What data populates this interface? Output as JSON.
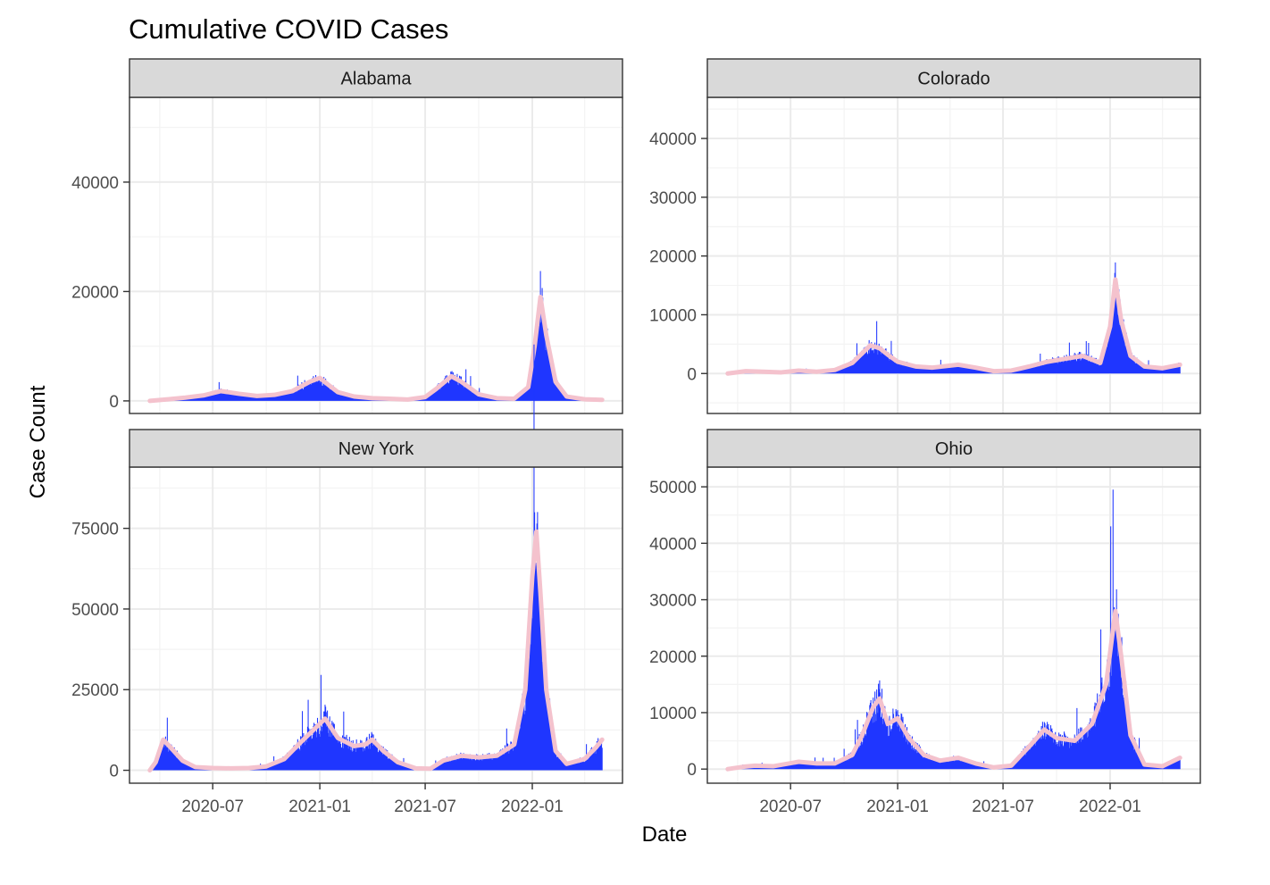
{
  "chart_data": {
    "type": "bar",
    "title": "Cumulative COVID Cases",
    "xlabel": "Date",
    "ylabel": "Case Count",
    "x_ticks": [
      "2020-07",
      "2021-01",
      "2021-07",
      "2022-01"
    ],
    "x_tick_dates": [
      "2020-07-01",
      "2021-01-01",
      "2021-07-01",
      "2022-01-01"
    ],
    "date_range": [
      "2020-03-15",
      "2022-05-01"
    ],
    "grid": true,
    "colors": {
      "bars": "#1f36ff",
      "smooth": "#f4c2cd",
      "strip": "#d9d9d9",
      "grid": "#ebebeb"
    },
    "series": [
      {
        "name": "daily cases",
        "style": "bars"
      },
      {
        "name": "rolling average",
        "style": "line"
      }
    ],
    "panels": [
      {
        "name": "Alabama",
        "ylim": [
          -2300,
          55500
        ],
        "y_ticks": [
          0,
          20000,
          40000
        ],
        "points": [
          [
            "2020-03-15",
            0
          ],
          [
            "2020-04-15",
            300
          ],
          [
            "2020-05-15",
            600
          ],
          [
            "2020-06-15",
            1000
          ],
          [
            "2020-07-15",
            1800
          ],
          [
            "2020-08-15",
            1300
          ],
          [
            "2020-09-15",
            900
          ],
          [
            "2020-10-15",
            1100
          ],
          [
            "2020-11-15",
            1800
          ],
          [
            "2020-12-15",
            3500
          ],
          [
            "2021-01-01",
            4200
          ],
          [
            "2021-01-15",
            3000
          ],
          [
            "2021-02-01",
            1600
          ],
          [
            "2021-03-01",
            800
          ],
          [
            "2021-04-01",
            500
          ],
          [
            "2021-05-01",
            400
          ],
          [
            "2021-06-01",
            250
          ],
          [
            "2021-07-01",
            700
          ],
          [
            "2021-07-20",
            2200
          ],
          [
            "2021-08-15",
            4500
          ],
          [
            "2021-09-01",
            3500
          ],
          [
            "2021-10-01",
            1200
          ],
          [
            "2021-11-01",
            500
          ],
          [
            "2021-12-01",
            400
          ],
          [
            "2021-12-25",
            2500
          ],
          [
            "2022-01-05",
            10000
          ],
          [
            "2022-01-15",
            19000
          ],
          [
            "2022-01-25",
            12000
          ],
          [
            "2022-02-10",
            3500
          ],
          [
            "2022-03-01",
            800
          ],
          [
            "2022-04-01",
            300
          ],
          [
            "2022-05-01",
            200
          ]
        ]
      },
      {
        "name": "Colorado",
        "ylim": [
          -6800,
          47000
        ],
        "y_ticks": [
          0,
          10000,
          20000,
          30000,
          40000
        ],
        "points": [
          [
            "2020-03-15",
            0
          ],
          [
            "2020-04-15",
            400
          ],
          [
            "2020-05-15",
            300
          ],
          [
            "2020-06-15",
            200
          ],
          [
            "2020-07-15",
            500
          ],
          [
            "2020-08-15",
            300
          ],
          [
            "2020-09-15",
            600
          ],
          [
            "2020-10-15",
            1800
          ],
          [
            "2020-11-15",
            4800
          ],
          [
            "2020-12-01",
            4300
          ],
          [
            "2020-12-15",
            3200
          ],
          [
            "2021-01-01",
            2000
          ],
          [
            "2021-02-01",
            1200
          ],
          [
            "2021-03-01",
            1000
          ],
          [
            "2021-04-15",
            1500
          ],
          [
            "2021-05-15",
            1000
          ],
          [
            "2021-06-15",
            400
          ],
          [
            "2021-07-15",
            500
          ],
          [
            "2021-08-15",
            1200
          ],
          [
            "2021-09-15",
            2000
          ],
          [
            "2021-10-15",
            2500
          ],
          [
            "2021-11-15",
            3000
          ],
          [
            "2021-12-15",
            1800
          ],
          [
            "2022-01-01",
            8000
          ],
          [
            "2022-01-10",
            16000
          ],
          [
            "2022-01-20",
            9000
          ],
          [
            "2022-02-05",
            3000
          ],
          [
            "2022-03-01",
            1200
          ],
          [
            "2022-04-01",
            900
          ],
          [
            "2022-05-01",
            1500
          ]
        ]
      },
      {
        "name": "New York",
        "ylim": [
          -4000,
          94000
        ],
        "y_ticks": [
          0,
          25000,
          50000,
          75000
        ],
        "points": [
          [
            "2020-03-15",
            0
          ],
          [
            "2020-03-25",
            2500
          ],
          [
            "2020-04-07",
            9500
          ],
          [
            "2020-04-20",
            7000
          ],
          [
            "2020-05-10",
            3000
          ],
          [
            "2020-06-01",
            1000
          ],
          [
            "2020-07-01",
            700
          ],
          [
            "2020-08-01",
            600
          ],
          [
            "2020-09-01",
            700
          ],
          [
            "2020-10-01",
            1200
          ],
          [
            "2020-11-01",
            3500
          ],
          [
            "2020-12-01",
            9000
          ],
          [
            "2021-01-10",
            16000
          ],
          [
            "2021-02-01",
            10000
          ],
          [
            "2021-03-01",
            7500
          ],
          [
            "2021-03-20",
            8000
          ],
          [
            "2021-04-01",
            9500
          ],
          [
            "2021-04-20",
            6000
          ],
          [
            "2021-05-15",
            2500
          ],
          [
            "2021-06-15",
            600
          ],
          [
            "2021-07-10",
            500
          ],
          [
            "2021-08-01",
            3000
          ],
          [
            "2021-09-01",
            4500
          ],
          [
            "2021-10-01",
            4000
          ],
          [
            "2021-11-01",
            4500
          ],
          [
            "2021-12-01",
            8000
          ],
          [
            "2021-12-20",
            25000
          ],
          [
            "2022-01-01",
            60000
          ],
          [
            "2022-01-08",
            74000
          ],
          [
            "2022-01-15",
            55000
          ],
          [
            "2022-01-25",
            25000
          ],
          [
            "2022-02-10",
            6000
          ],
          [
            "2022-03-01",
            2000
          ],
          [
            "2022-04-01",
            3500
          ],
          [
            "2022-04-20",
            7000
          ],
          [
            "2022-05-01",
            9500
          ]
        ]
      },
      {
        "name": "Ohio",
        "ylim": [
          -2500,
          53500
        ],
        "y_ticks": [
          0,
          10000,
          20000,
          30000,
          40000,
          50000
        ],
        "points": [
          [
            "2020-03-15",
            0
          ],
          [
            "2020-04-10",
            400
          ],
          [
            "2020-05-01",
            600
          ],
          [
            "2020-06-01",
            500
          ],
          [
            "2020-07-15",
            1300
          ],
          [
            "2020-08-15",
            1000
          ],
          [
            "2020-09-15",
            1000
          ],
          [
            "2020-10-15",
            2500
          ],
          [
            "2020-11-01",
            6000
          ],
          [
            "2020-11-20",
            11000
          ],
          [
            "2020-12-01",
            12500
          ],
          [
            "2020-12-15",
            8000
          ],
          [
            "2021-01-01",
            9000
          ],
          [
            "2021-01-20",
            5500
          ],
          [
            "2021-02-15",
            2500
          ],
          [
            "2021-03-15",
            1500
          ],
          [
            "2021-04-15",
            2000
          ],
          [
            "2021-05-15",
            1000
          ],
          [
            "2021-06-15",
            300
          ],
          [
            "2021-07-15",
            600
          ],
          [
            "2021-08-15",
            4000
          ],
          [
            "2021-09-10",
            7000
          ],
          [
            "2021-10-01",
            5500
          ],
          [
            "2021-11-01",
            5000
          ],
          [
            "2021-12-01",
            8000
          ],
          [
            "2021-12-25",
            15000
          ],
          [
            "2022-01-10",
            28000
          ],
          [
            "2022-01-20",
            20000
          ],
          [
            "2022-02-05",
            6000
          ],
          [
            "2022-03-01",
            800
          ],
          [
            "2022-04-01",
            500
          ],
          [
            "2022-05-01",
            2000
          ]
        ]
      }
    ]
  }
}
